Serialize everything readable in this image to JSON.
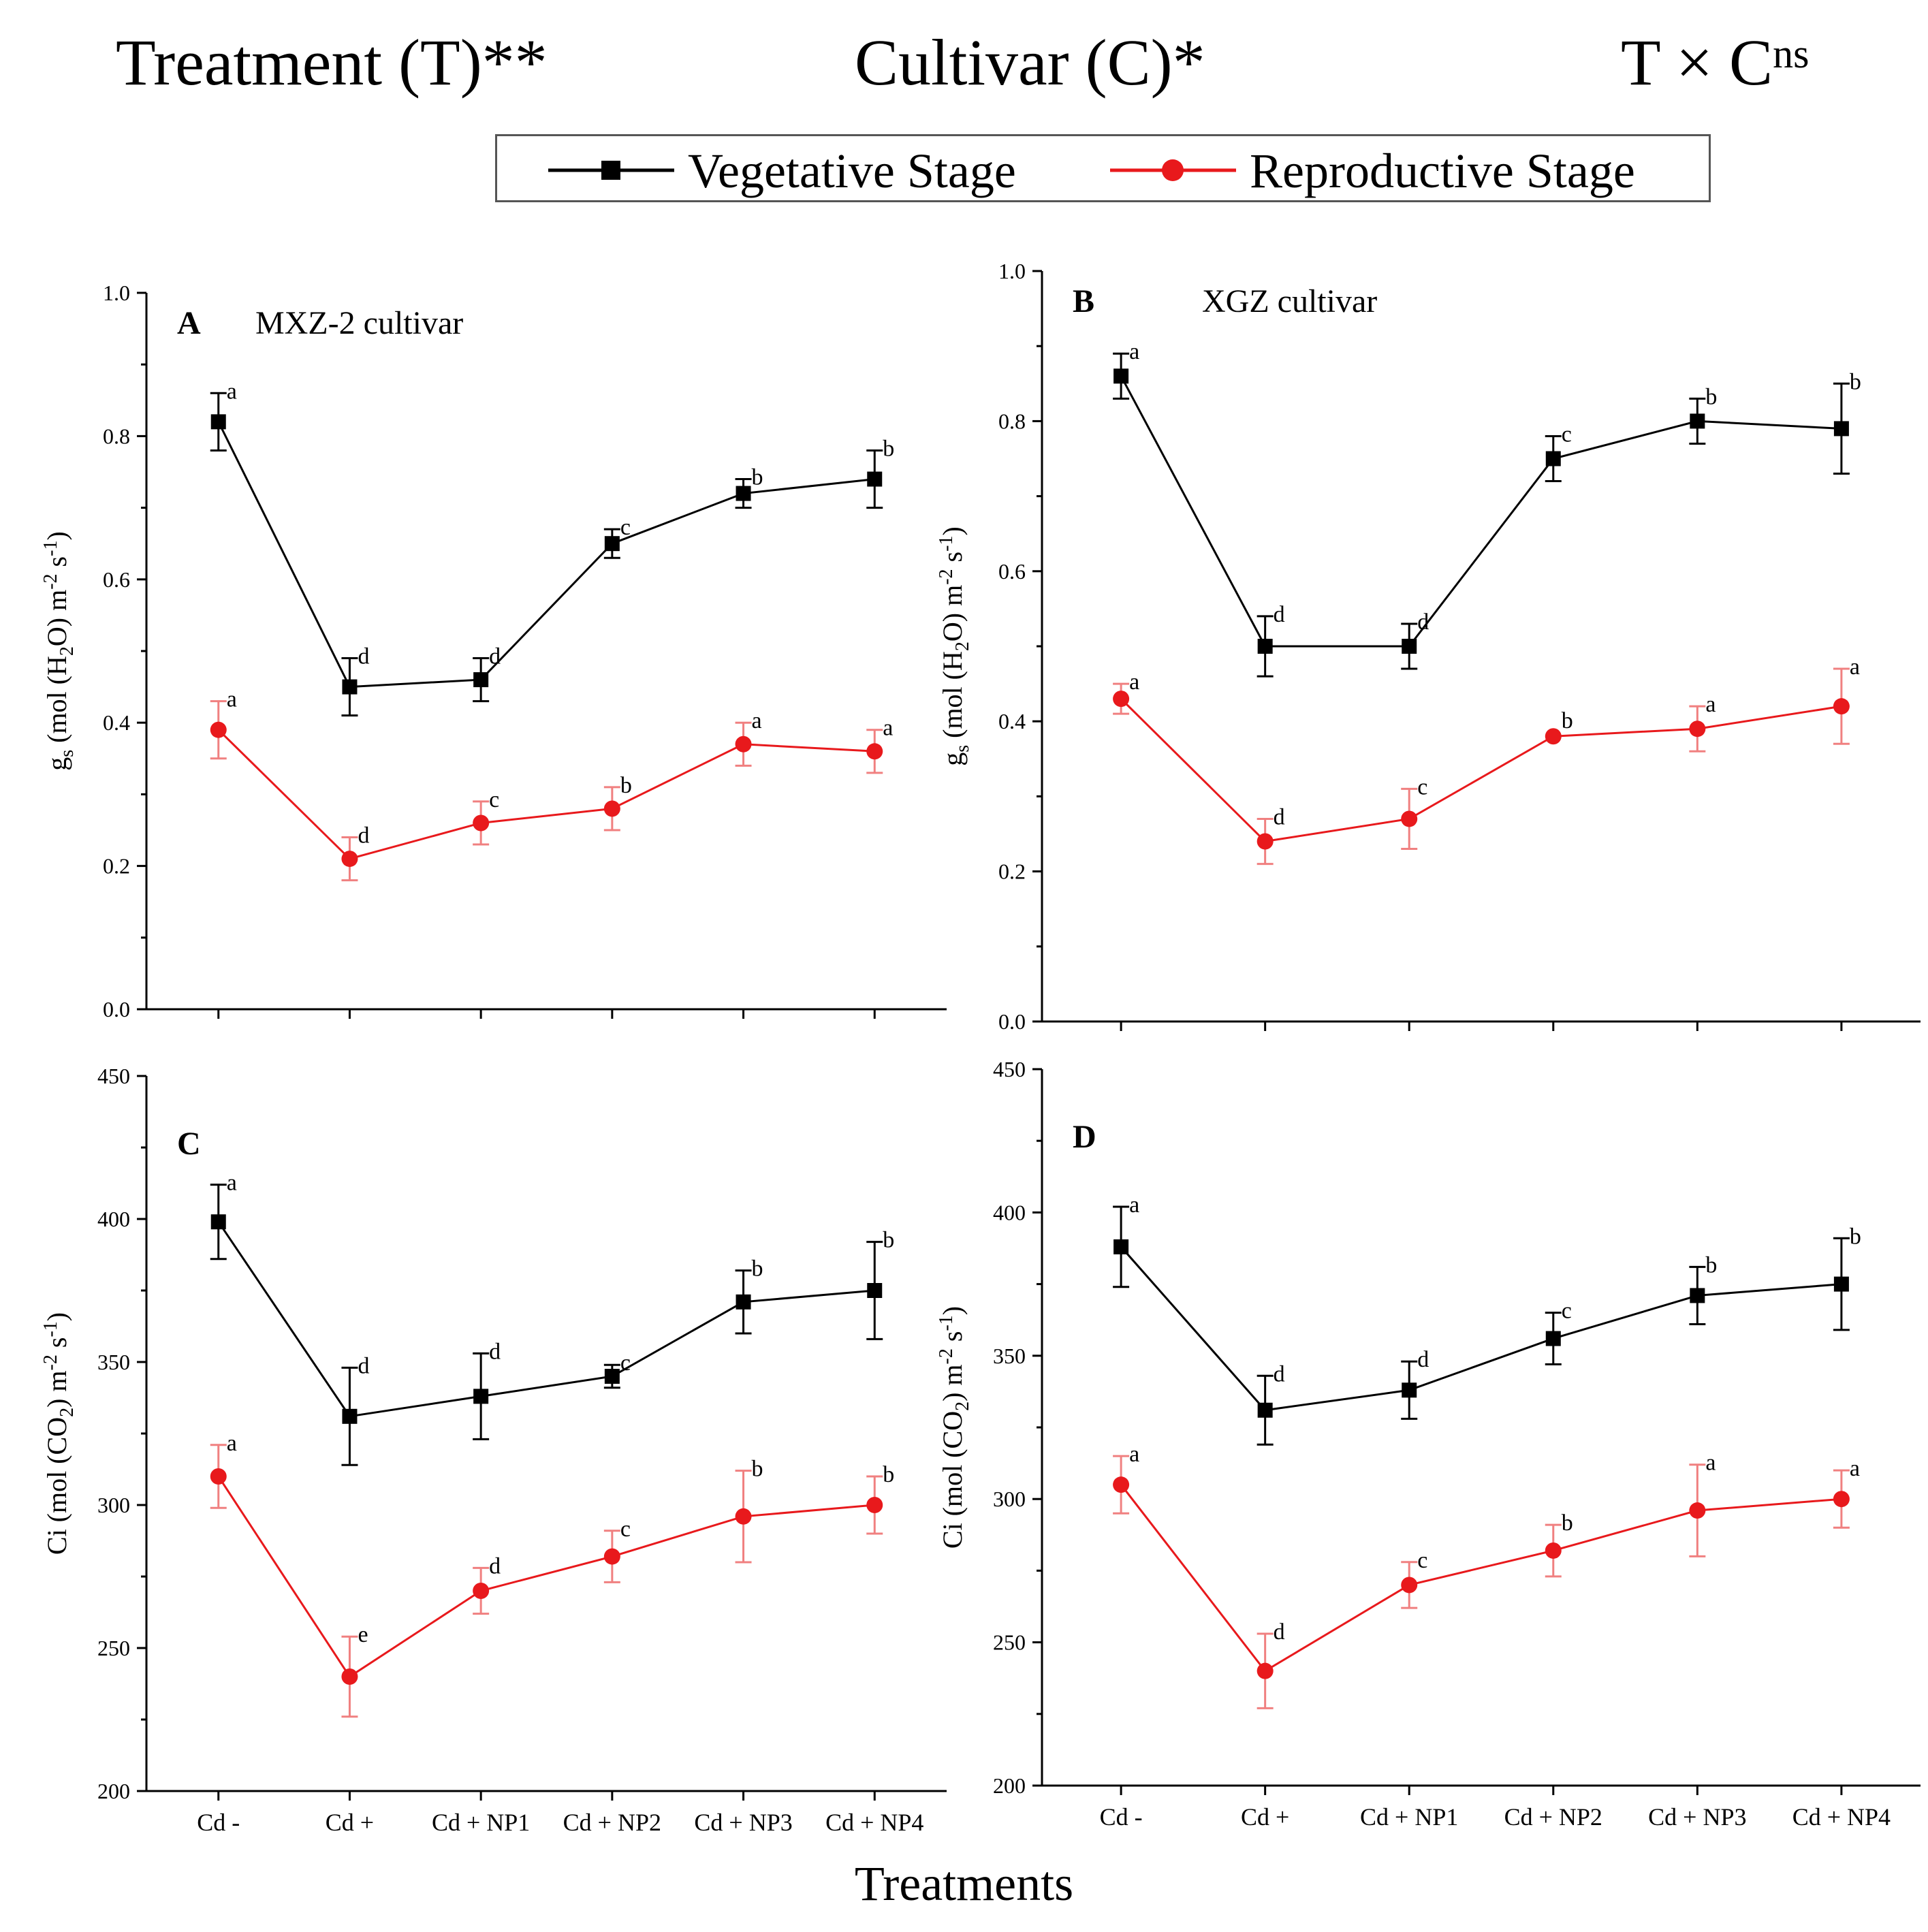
{
  "header": {
    "treatment": "Treatment (T)**",
    "cultivar": "Cultivar (C)*",
    "interaction": "T × C",
    "interaction_sup": "ns"
  },
  "legend": {
    "vegetative": "Vegetative Stage",
    "reproductive": "Reproductive Stage"
  },
  "colors": {
    "vegetative": "#000000",
    "reproductive": "#e8191c",
    "error_rep": "#f08080"
  },
  "x_title": "Treatments",
  "chart_data": [
    {
      "type": "line",
      "panel": "A",
      "title": "MXZ-2 cultivar",
      "ylabel": "gs (mol (H2O) m-2 s-1)",
      "ylabel_parts": [
        "g",
        "s",
        " (mol (H",
        "2",
        "O) m",
        "-2",
        " s",
        "-1",
        ")"
      ],
      "ylim": [
        0,
        1.0
      ],
      "yticks": [
        "0.0",
        "0.2",
        "0.4",
        "0.6",
        "0.8",
        "1.0"
      ],
      "categories": [
        "Cd -",
        "Cd +",
        "Cd + NP1",
        "Cd + NP2",
        "Cd + NP3",
        "Cd + NP4"
      ],
      "show_xticklabels": false,
      "series": [
        {
          "name": "Vegetative Stage",
          "values": [
            0.82,
            0.45,
            0.46,
            0.65,
            0.72,
            0.74
          ],
          "errors": [
            0.04,
            0.04,
            0.03,
            0.02,
            0.02,
            0.04
          ],
          "letters": [
            "a",
            "d",
            "d",
            "c",
            "b",
            "b"
          ]
        },
        {
          "name": "Reproductive Stage",
          "values": [
            0.39,
            0.21,
            0.26,
            0.28,
            0.37,
            0.36
          ],
          "errors": [
            0.04,
            0.03,
            0.03,
            0.03,
            0.03,
            0.03
          ],
          "letters": [
            "a",
            "d",
            "c",
            "b",
            "a",
            "a"
          ]
        }
      ]
    },
    {
      "type": "line",
      "panel": "B",
      "title": "XGZ cultivar",
      "ylabel": "gs (mol (H2O) m-2 s-1)",
      "ylabel_parts": [
        "g",
        "s",
        " (mol (H",
        "2",
        "O) m",
        "-2",
        " s",
        "-1",
        ")"
      ],
      "ylim": [
        0,
        1.0
      ],
      "yticks": [
        "0.0",
        "0.2",
        "0.4",
        "0.6",
        "0.8",
        "1.0"
      ],
      "categories": [
        "Cd -",
        "Cd +",
        "Cd + NP1",
        "Cd + NP2",
        "Cd + NP3",
        "Cd + NP4"
      ],
      "show_xticklabels": false,
      "series": [
        {
          "name": "Vegetative Stage",
          "values": [
            0.86,
            0.5,
            0.5,
            0.75,
            0.8,
            0.79
          ],
          "errors": [
            0.03,
            0.04,
            0.03,
            0.03,
            0.03,
            0.06
          ],
          "letters": [
            "a",
            "d",
            "d",
            "c",
            "b",
            "b"
          ]
        },
        {
          "name": "Reproductive Stage",
          "values": [
            0.43,
            0.24,
            0.27,
            0.38,
            0.39,
            0.42
          ],
          "errors": [
            0.02,
            0.03,
            0.04,
            0.0,
            0.03,
            0.05
          ],
          "letters": [
            "a",
            "d",
            "c",
            "b",
            "a",
            "a"
          ]
        }
      ]
    },
    {
      "type": "line",
      "panel": "C",
      "title": "",
      "ylabel": "Ci (mol (CO2) m-2 s-1)",
      "ylabel_parts": [
        "Ci",
        "",
        " (mol (CO",
        "2",
        ") m",
        "-2",
        " s",
        "-1",
        ")"
      ],
      "ylim": [
        200,
        450
      ],
      "yticks": [
        "200",
        "250",
        "300",
        "350",
        "400",
        "450"
      ],
      "categories": [
        "Cd -",
        "Cd +",
        "Cd + NP1",
        "Cd + NP2",
        "Cd + NP3",
        "Cd + NP4"
      ],
      "show_xticklabels": true,
      "series": [
        {
          "name": "Vegetative Stage",
          "values": [
            399,
            331,
            338,
            345,
            371,
            375
          ],
          "errors": [
            13,
            17,
            15,
            4,
            11,
            17
          ],
          "letters": [
            "a",
            "d",
            "d",
            "c",
            "b",
            "b"
          ]
        },
        {
          "name": "Reproductive Stage",
          "values": [
            310,
            240,
            270,
            282,
            296,
            300
          ],
          "errors": [
            11,
            14,
            8,
            9,
            16,
            10
          ],
          "letters": [
            "a",
            "e",
            "d",
            "c",
            "b",
            "b"
          ]
        }
      ]
    },
    {
      "type": "line",
      "panel": "D",
      "title": "",
      "ylabel": "Ci (mol (CO2) m-2 s-1)",
      "ylabel_parts": [
        "Ci",
        "",
        " (mol (CO",
        "2",
        ") m",
        "-2",
        " s",
        "-1",
        ")"
      ],
      "ylim": [
        200,
        450
      ],
      "yticks": [
        "200",
        "250",
        "300",
        "350",
        "400",
        "450"
      ],
      "categories": [
        "Cd -",
        "Cd +",
        "Cd + NP1",
        "Cd + NP2",
        "Cd + NP3",
        "Cd + NP4"
      ],
      "show_xticklabels": true,
      "series": [
        {
          "name": "Vegetative Stage",
          "values": [
            388,
            331,
            338,
            356,
            371,
            375
          ],
          "errors": [
            14,
            12,
            10,
            9,
            10,
            16
          ],
          "letters": [
            "a",
            "d",
            "d",
            "c",
            "b",
            "b"
          ]
        },
        {
          "name": "Reproductive Stage",
          "values": [
            305,
            240,
            270,
            282,
            296,
            300
          ],
          "errors": [
            10,
            13,
            8,
            9,
            16,
            10
          ],
          "letters": [
            "a",
            "d",
            "c",
            "b",
            "a",
            "a"
          ]
        }
      ]
    }
  ]
}
